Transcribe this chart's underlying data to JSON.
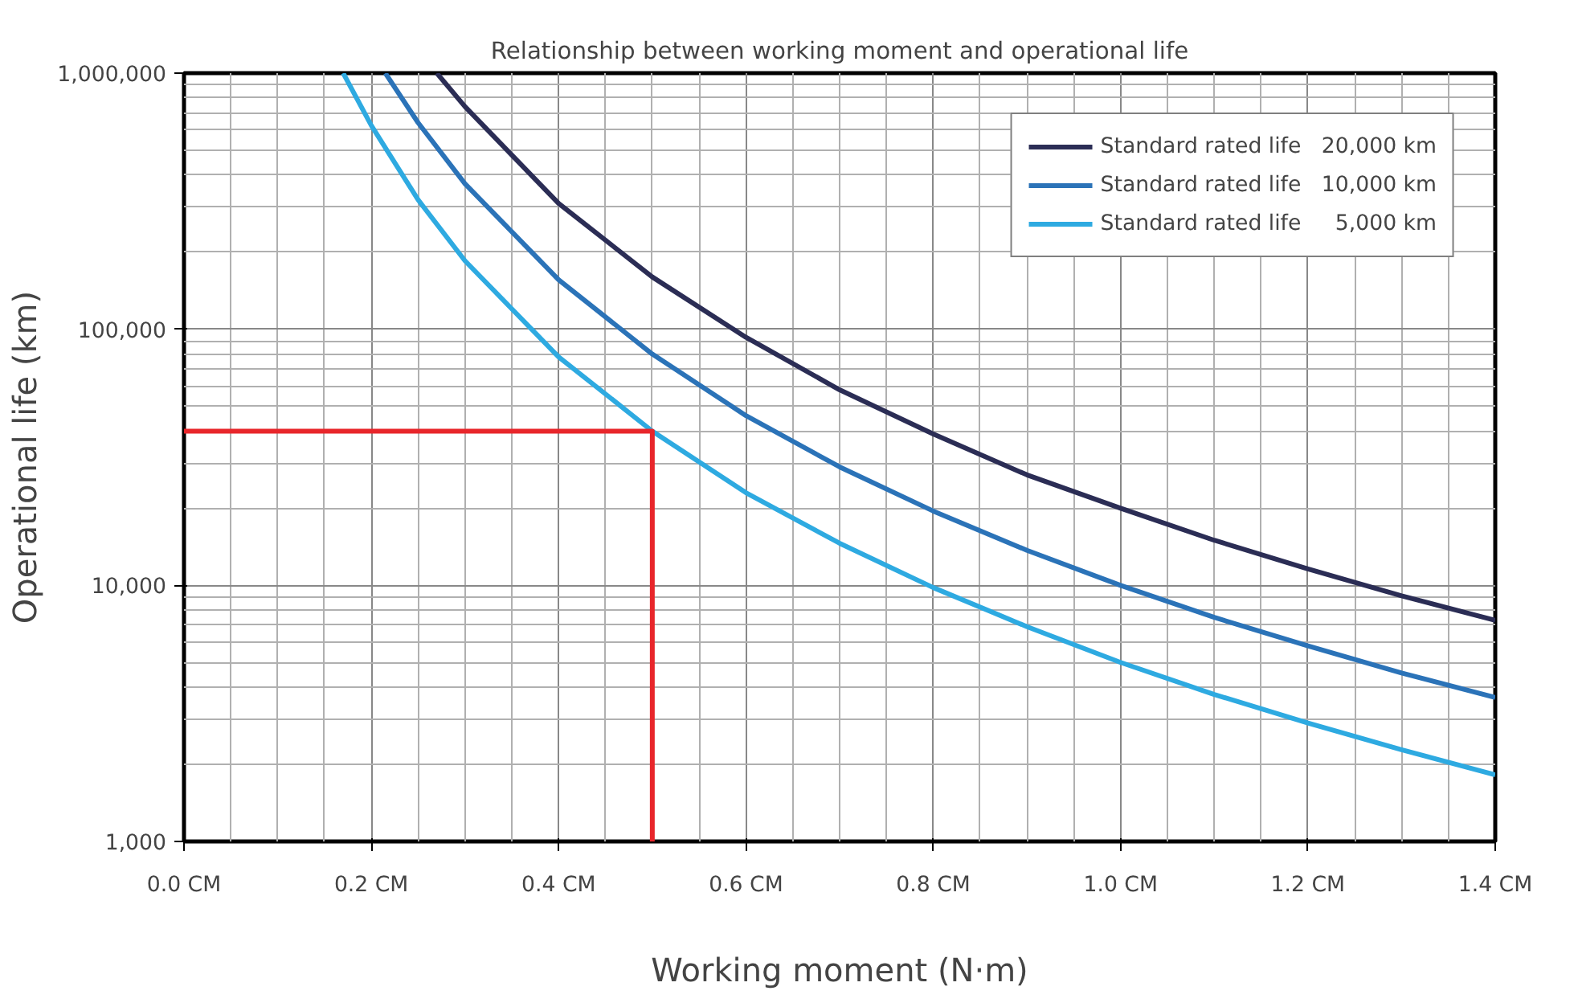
{
  "chart_data": {
    "type": "line",
    "title": "Relationship between working moment and operational life",
    "xlabel": "Working moment (N·m)",
    "ylabel": "Operational life (km)",
    "log": "y",
    "grid": true,
    "legend": "top right",
    "xlim": [
      0,
      1.4
    ],
    "ylim": [
      1000,
      1000000
    ],
    "xticks": [
      {
        "value": 0,
        "label": "0.0 CM"
      },
      {
        "value": 0.2,
        "label": "0.2 CM"
      },
      {
        "value": 0.4,
        "label": "0.4 CM"
      },
      {
        "value": 0.6,
        "label": "0.6 CM"
      },
      {
        "value": 0.8,
        "label": "0.8 CM"
      },
      {
        "value": 1.0,
        "label": "1.0 CM"
      },
      {
        "value": 1.2,
        "label": "1.2 CM"
      },
      {
        "value": 1.4,
        "label": "1.4 CM"
      }
    ],
    "yticks": [
      {
        "value": 1000,
        "label": "1,000"
      },
      {
        "value": 10000,
        "label": "10,000"
      },
      {
        "value": 100000,
        "label": "100,000"
      },
      {
        "value": 1000000,
        "label": "1,000,000"
      }
    ],
    "series": [
      {
        "name": "Standard rated life   20,000 km",
        "color": "#2b2d55",
        "x": [
          0.27,
          0.3,
          0.4,
          0.5,
          0.6,
          0.7,
          0.8,
          0.9,
          1.0,
          1.1,
          1.2,
          1.3,
          1.4
        ],
        "values": [
          1000000,
          740000,
          310000,
          160000,
          93000,
          58000,
          39000,
          27000,
          20000,
          15000,
          11600,
          9100,
          7300
        ]
      },
      {
        "name": "Standard rated life   10,000 km",
        "color": "#2b73b8",
        "x": [
          0.215,
          0.25,
          0.3,
          0.4,
          0.5,
          0.6,
          0.7,
          0.8,
          0.9,
          1.0,
          1.1,
          1.2,
          1.3,
          1.4
        ],
        "values": [
          1000000,
          640000,
          370000,
          156000,
          80000,
          46000,
          29000,
          19500,
          13700,
          10000,
          7500,
          5800,
          4550,
          3650
        ]
      },
      {
        "name": "Standard rated life     5,000 km",
        "color": "#2eaae1",
        "x": [
          0.17,
          0.2,
          0.25,
          0.3,
          0.4,
          0.5,
          0.6,
          0.7,
          0.8,
          0.9,
          1.0,
          1.1,
          1.2,
          1.3,
          1.4
        ],
        "values": [
          1000000,
          625000,
          320000,
          185000,
          78000,
          40000,
          23000,
          14600,
          9800,
          6900,
          5000,
          3750,
          2900,
          2280,
          1820
        ]
      },
      {
        "color": "#e8262b",
        "x": [
          0,
          0.5,
          0.5
        ],
        "values": [
          40000,
          40000,
          1000
        ]
      }
    ]
  }
}
